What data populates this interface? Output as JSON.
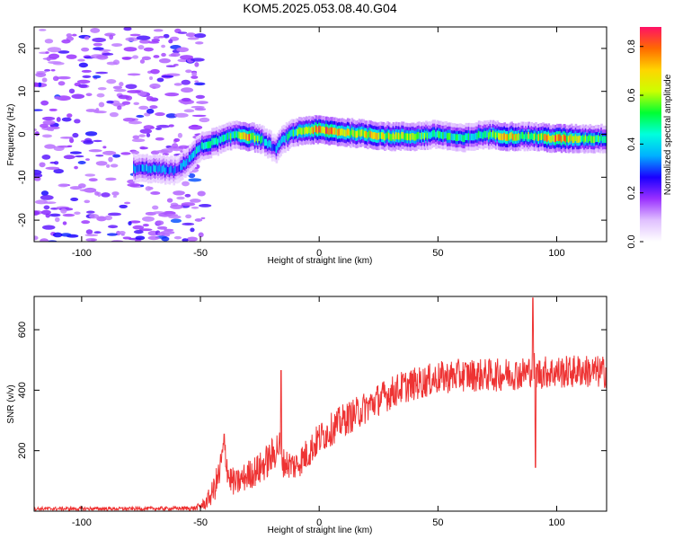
{
  "title": "KOM5.2025.053.08.40.G04",
  "colors": {
    "snr_line": "#ee3333",
    "frame": "#000000"
  },
  "chart_data": [
    {
      "type": "heatmap",
      "xlabel": "Height of straight line (km)",
      "ylabel": "Frequency (Hz)",
      "xlim": [
        -120,
        121
      ],
      "ylim": [
        -25,
        25
      ],
      "xticks": [
        -100,
        -50,
        0,
        50,
        100
      ],
      "yticks": [
        -20,
        -10,
        0,
        10,
        20
      ],
      "colorbar": {
        "label": "Normalized spectral amplitude",
        "range": [
          0,
          0.88
        ],
        "ticks": [
          "0.0",
          "0.2",
          "0.4",
          "0.6",
          "0.8"
        ],
        "colormap": [
          "#ffffff",
          "#e0c0ff",
          "#9a30ff",
          "#1a00ff",
          "#00b0ff",
          "#00ffdd",
          "#00ff33",
          "#ccff00",
          "#ffd500",
          "#ff6a00",
          "#ff1166"
        ]
      },
      "ridge": {
        "x": [
          -78,
          -70,
          -60,
          -55,
          -50,
          -45,
          -40,
          -35,
          -30,
          -25,
          -22,
          -18,
          -15,
          -10,
          -5,
          0,
          10,
          20,
          30,
          40,
          50,
          60,
          70,
          80,
          90,
          100,
          110,
          121
        ],
        "y": [
          -8,
          -8,
          -8.5,
          -6,
          -3,
          -2,
          -1,
          0,
          -0.5,
          -1,
          -2,
          -3.5,
          -1,
          0.5,
          1,
          1,
          0.5,
          0,
          -0.5,
          -0.5,
          0,
          -1,
          0,
          -0.5,
          -0.5,
          -1,
          -1,
          -1
        ],
        "amplitude": [
          0.35,
          0.4,
          0.3,
          0.4,
          0.45,
          0.5,
          0.5,
          0.55,
          0.85,
          0.5,
          0.4,
          0.35,
          0.45,
          0.55,
          0.6,
          0.88,
          0.7,
          0.8,
          0.65,
          0.6,
          0.55,
          0.5,
          0.5,
          0.75,
          0.6,
          0.85,
          0.6,
          0.55
        ]
      },
      "noise_region": [
        -120,
        -48
      ]
    },
    {
      "type": "line",
      "xlabel": "Height of straight line (km)",
      "ylabel": "SNR (v/v)",
      "xlim": [
        -120,
        121
      ],
      "ylim": [
        0,
        710
      ],
      "xticks": [
        -100,
        -50,
        0,
        50,
        100
      ],
      "yticks": [
        200,
        400,
        600
      ],
      "series": [
        {
          "x": [
            -120,
            -100,
            -80,
            -60,
            -52,
            -48,
            -45,
            -42,
            -40,
            -38,
            -35,
            -30,
            -25,
            -20,
            -17,
            -15,
            -10,
            -5,
            0,
            5,
            10,
            15,
            20,
            25,
            30,
            35,
            40,
            45,
            50,
            55,
            60,
            65,
            70,
            75,
            80,
            85,
            88,
            90,
            92,
            95,
            100,
            105,
            110,
            115,
            121
          ],
          "y": [
            8,
            8,
            8,
            9,
            10,
            25,
            60,
            120,
            220,
            110,
            90,
            120,
            140,
            180,
            220,
            160,
            150,
            190,
            240,
            270,
            300,
            320,
            345,
            370,
            390,
            410,
            420,
            430,
            440,
            445,
            450,
            450,
            450,
            450,
            455,
            455,
            460,
            480,
            455,
            460,
            460,
            460,
            465,
            460,
            460
          ],
          "noise_amplitude": [
            6,
            6,
            6,
            6,
            8,
            20,
            40,
            60,
            60,
            50,
            45,
            50,
            55,
            60,
            60,
            50,
            50,
            55,
            55,
            55,
            55,
            55,
            55,
            55,
            55,
            55,
            55,
            55,
            55,
            55,
            55,
            55,
            55,
            55,
            55,
            55,
            55,
            60,
            55,
            55,
            55,
            55,
            55,
            55,
            55
          ],
          "spikes": [
            {
              "x": -40,
              "y": 255
            },
            {
              "x": -16,
              "y": 465
            },
            {
              "x": 90,
              "y": 705
            },
            {
              "x": 91,
              "y": 145
            }
          ]
        }
      ]
    }
  ]
}
